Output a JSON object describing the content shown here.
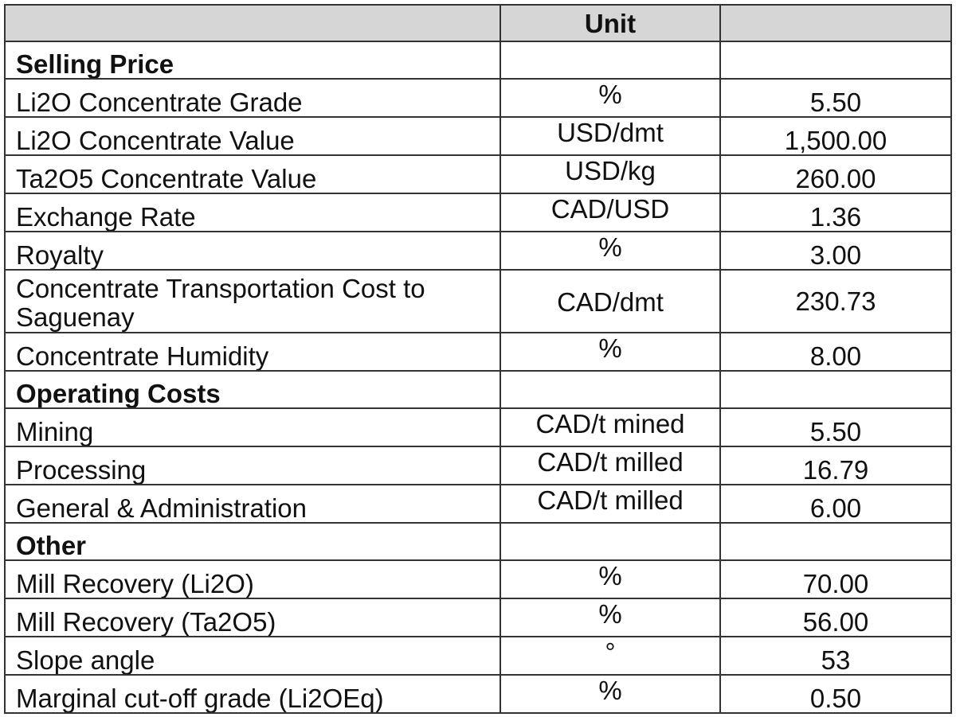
{
  "header": {
    "col1": "",
    "col2": "Unit",
    "col3": ""
  },
  "sections": [
    {
      "title": "Selling Price",
      "rows": [
        {
          "label": "Li2O Concentrate Grade",
          "unit": "%",
          "value": "5.50"
        },
        {
          "label": "Li2O Concentrate Value",
          "unit": "USD/dmt",
          "value": "1,500.00"
        },
        {
          "label": "Ta2O5 Concentrate Value",
          "unit": "USD/kg",
          "value": "260.00"
        },
        {
          "label": "Exchange Rate",
          "unit": "CAD/USD",
          "value": "1.36"
        },
        {
          "label": "Royalty",
          "unit": "%",
          "value": "3.00"
        },
        {
          "label": "Concentrate Transportation Cost to Saguenay",
          "unit": "CAD/dmt",
          "value": "230.73"
        },
        {
          "label": "Concentrate Humidity",
          "unit": "%",
          "value": "8.00"
        }
      ]
    },
    {
      "title": "Operating Costs",
      "rows": [
        {
          "label": "Mining",
          "unit": "CAD/t mined",
          "value": "5.50"
        },
        {
          "label": "Processing",
          "unit": "CAD/t milled",
          "value": "16.79"
        },
        {
          "label": "General & Administration",
          "unit": "CAD/t milled",
          "value": "6.00"
        }
      ]
    },
    {
      "title": "Other",
      "rows": [
        {
          "label": "Mill Recovery (Li2O)",
          "unit": "%",
          "value": "70.00"
        },
        {
          "label": "Mill Recovery (Ta2O5)",
          "unit": "%",
          "value": "56.00"
        },
        {
          "label": "Slope angle",
          "unit": "°",
          "value": "53"
        },
        {
          "label": "Marginal cut-off grade (Li2OEq)",
          "unit": "%",
          "value": "0.50"
        }
      ]
    }
  ]
}
